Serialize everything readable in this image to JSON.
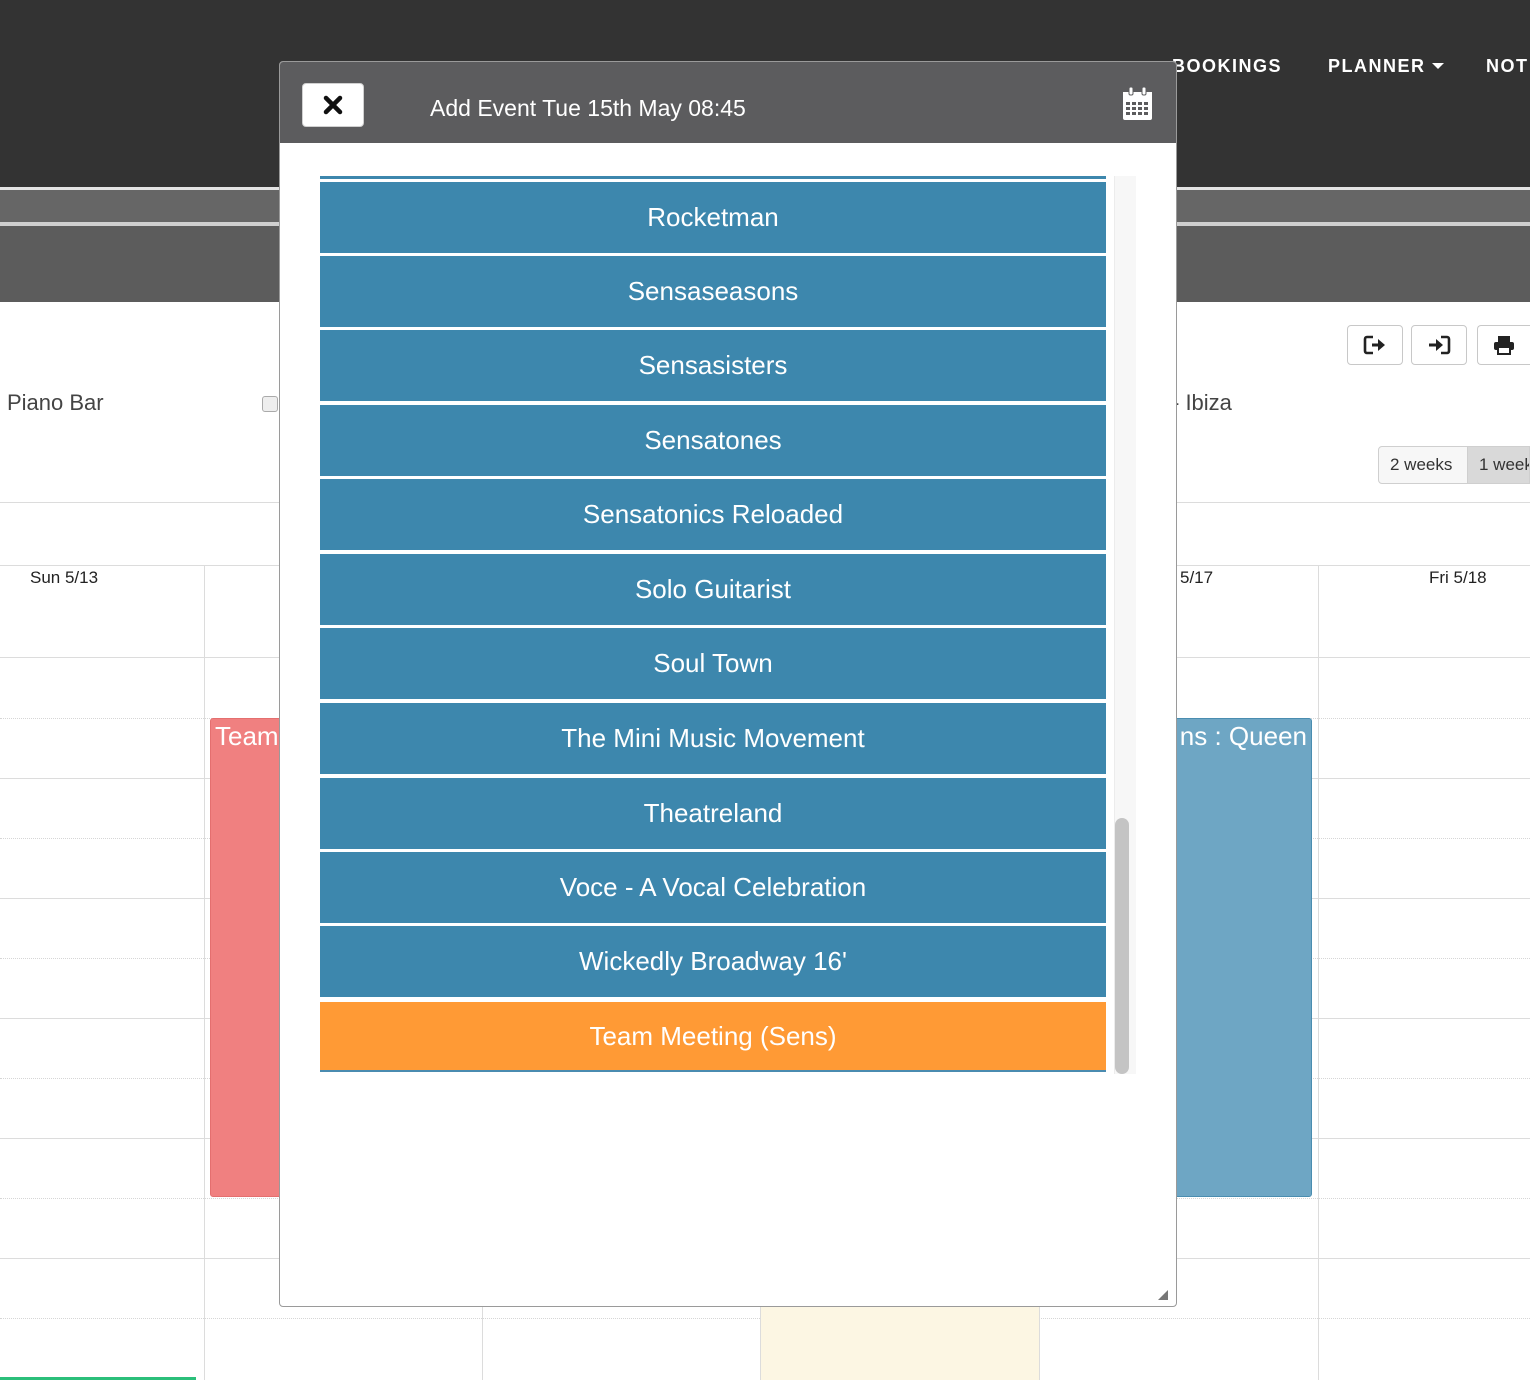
{
  "nav": {
    "bookings": "BOOKINGS",
    "planner": "PLANNER",
    "notes_partial": "NOT"
  },
  "calendar": {
    "venue_left": "Piano Bar",
    "venue_right": "- Ibiza",
    "view_two_weeks": "2 weeks",
    "view_one_week": "1 week",
    "days": {
      "sun": "Sun 5/13",
      "thu": "5/17",
      "fri": "Fri 5/18"
    },
    "events": {
      "left_partial": "Team",
      "right_partial": "ns : Queen"
    }
  },
  "modal": {
    "title": "Add Event Tue 15th May 08:45",
    "items": [
      "Rocketman",
      "Sensaseasons",
      "Sensasisters",
      "Sensatones",
      "Sensatonics Reloaded",
      "Solo Guitarist",
      "Soul Town",
      "The Mini Music Movement",
      "Theatreland",
      "Voce - A Vocal Celebration",
      "Wickedly Broadway 16'",
      "Team Meeting (Sens)"
    ]
  },
  "colors": {
    "list_blue": "#3d87ad",
    "list_orange": "#ff9a35",
    "event_red": "#f08080",
    "event_blue": "#6ea6c4",
    "header_dark": "#333333"
  },
  "icons": {
    "close": "close-icon",
    "calendar": "calendar-icon",
    "export": "sign-out-icon",
    "import": "sign-in-icon",
    "print": "print-icon"
  }
}
